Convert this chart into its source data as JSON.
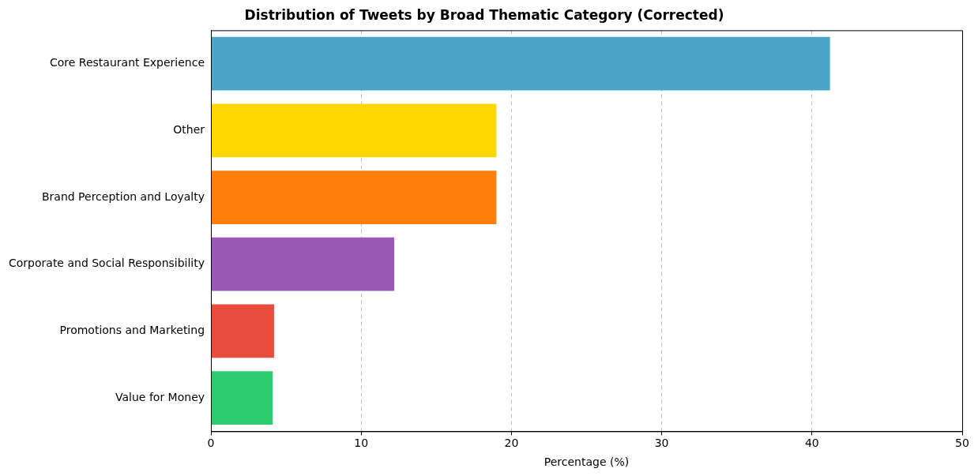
{
  "chart_data": {
    "type": "bar",
    "orientation": "horizontal",
    "title": "Distribution of Tweets by Broad Thematic Category (Corrected)",
    "xlabel": "Percentage (%)",
    "categories": [
      "Core Restaurant Experience",
      "Other",
      "Brand Perception and Loyalty",
      "Corporate and Social Responsibility",
      "Promotions and Marketing",
      "Value for Money"
    ],
    "values": [
      41.2,
      19.0,
      19.0,
      12.2,
      4.2,
      4.1
    ],
    "colors": [
      "#4ba3c8",
      "#ffd700",
      "#ff7f0e",
      "#9b59b6",
      "#e74c3c",
      "#2ecc71"
    ],
    "xlim": [
      0,
      50
    ],
    "xticks": [
      0,
      10,
      20,
      30,
      40,
      50
    ],
    "grid": "x"
  }
}
